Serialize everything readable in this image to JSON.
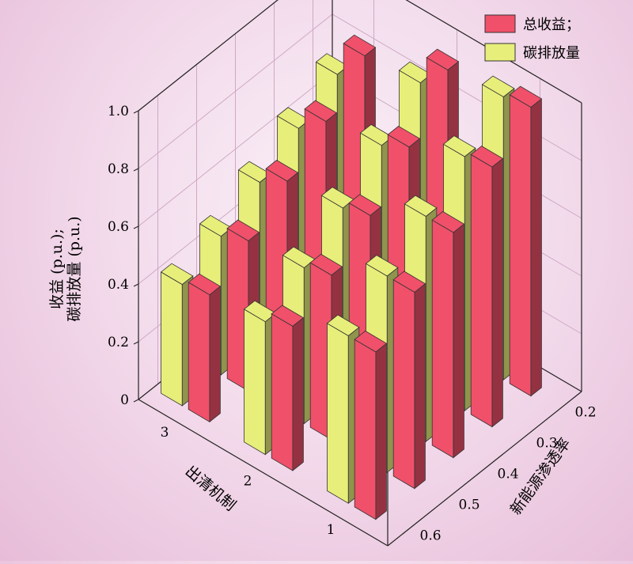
{
  "chart_data": {
    "type": "bar3d",
    "ylabel_lines": [
      "收益 (p.u.);",
      "碳排放量 (p.u.)"
    ],
    "x_axis_label": "出清机制",
    "x_categories": [
      "1",
      "2",
      "3"
    ],
    "depth_axis_label": "新能源渗透率",
    "depth_categories": [
      "0.2",
      "0.3",
      "0.4",
      "0.5",
      "0.6"
    ],
    "zlim": [
      0,
      1.0
    ],
    "z_ticks": [
      "0",
      "0.2",
      "0.4",
      "0.6",
      "0.8",
      "1.0"
    ],
    "grid": true,
    "legend_position": "top-right",
    "series": [
      {
        "name": "总收益；",
        "color": "#f0506a",
        "values": {
          "1": [
            0.84,
            0.72,
            0.62,
            0.52,
            0.44
          ],
          "2": [
            0.96,
            0.8,
            0.67,
            0.57,
            0.5
          ],
          "3": [
            1.0,
            0.9,
            0.78,
            0.68,
            0.58
          ]
        }
      },
      {
        "name": "碳排放量",
        "color": "#e8ee7a",
        "values": {
          "1": [
            0.72,
            0.64,
            0.56,
            0.48,
            0.42
          ],
          "2": [
            0.86,
            0.75,
            0.64,
            0.54,
            0.46
          ],
          "3": [
            0.98,
            0.88,
            0.78,
            0.68,
            0.58
          ]
        }
      }
    ]
  }
}
